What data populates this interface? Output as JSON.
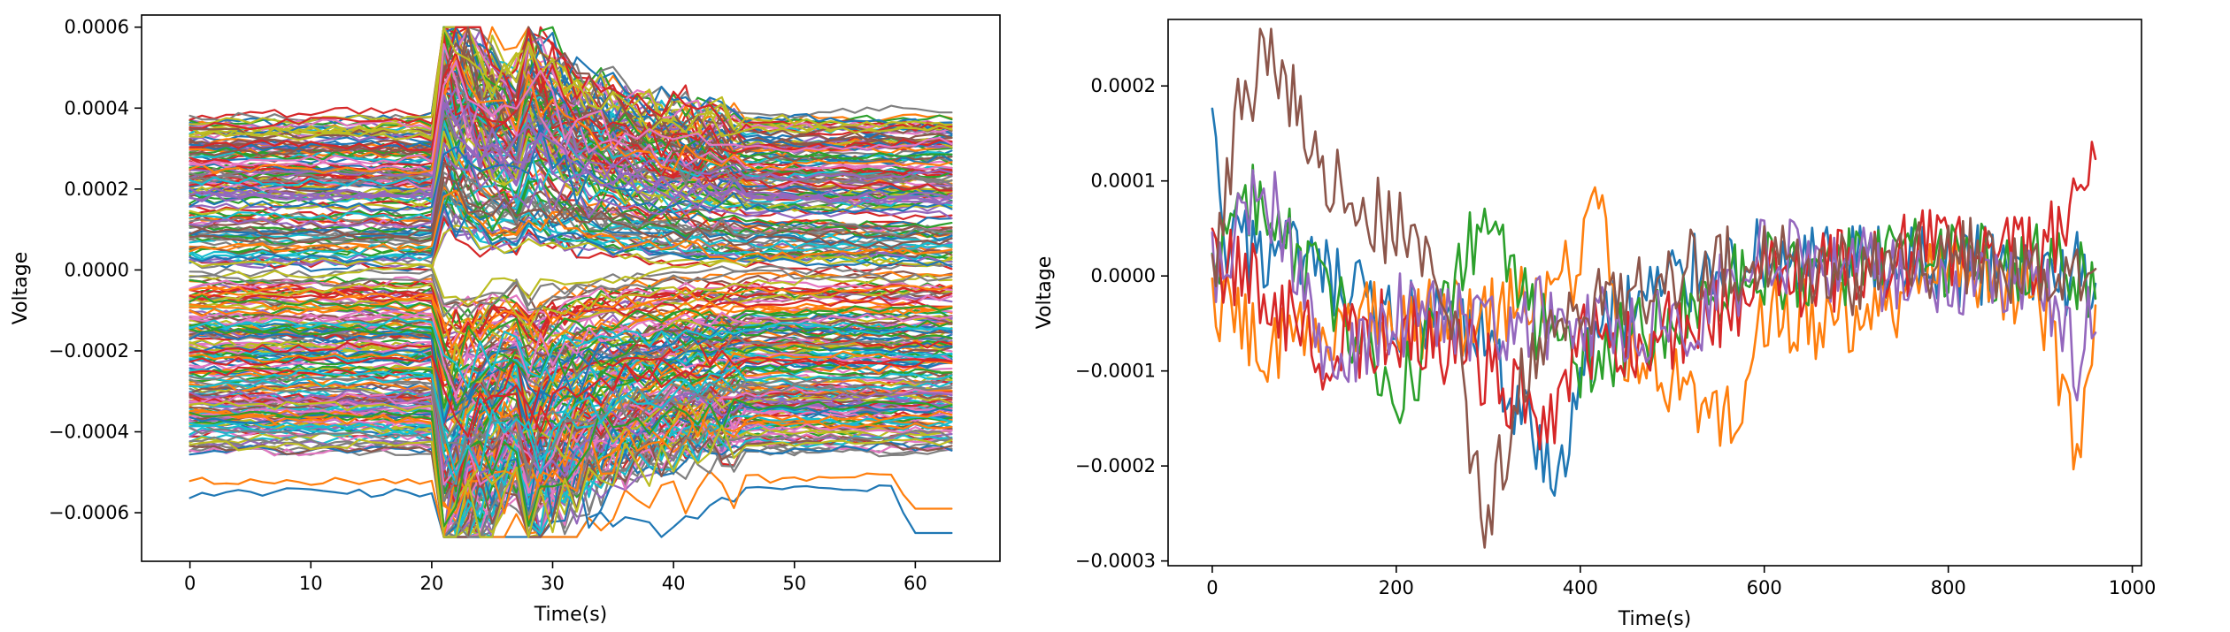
{
  "chart_data": [
    {
      "type": "line",
      "title": "",
      "xlabel": "Time(s)",
      "ylabel": "Voltage",
      "xlim": [
        -4,
        67
      ],
      "ylim": [
        -0.00072,
        0.00063
      ],
      "xticks": [
        {
          "value": 0,
          "label": "0"
        },
        {
          "value": 10,
          "label": "10"
        },
        {
          "value": 20,
          "label": "20"
        },
        {
          "value": 30,
          "label": "30"
        },
        {
          "value": 40,
          "label": "40"
        },
        {
          "value": 50,
          "label": "50"
        },
        {
          "value": 60,
          "label": "60"
        }
      ],
      "yticks": [
        {
          "value": -0.0006,
          "label": "−0.0006"
        },
        {
          "value": -0.0004,
          "label": "−0.0004"
        },
        {
          "value": -0.0002,
          "label": "−0.0002"
        },
        {
          "value": 0,
          "label": "0.0000"
        },
        {
          "value": 0.0002,
          "label": "0.0002"
        },
        {
          "value": 0.0004,
          "label": "0.0004"
        },
        {
          "value": 0.0006,
          "label": "0.0006"
        }
      ],
      "grid": false,
      "legend": "none",
      "series_count": 300,
      "x_range": [
        0,
        63
      ],
      "value_range": [
        -0.00066,
        0.0006
      ],
      "events": [
        {
          "t": 21,
          "amplitude": 0.00022
        },
        {
          "t": 28,
          "amplitude": 0.00016
        }
      ],
      "lowest_series_endpoints": [
        {
          "start": -0.00055,
          "end": -0.00065
        },
        {
          "start": -0.00052,
          "end": -0.00059
        }
      ],
      "colors": [
        "#1f77b4",
        "#ff7f0e",
        "#2ca02c",
        "#d62728",
        "#9467bd",
        "#8c564b",
        "#e377c2",
        "#7f7f7f",
        "#bcbd22",
        "#17becf"
      ]
    },
    {
      "type": "line",
      "title": "",
      "xlabel": "Time(s)",
      "ylabel": "Voltage",
      "xlim": [
        -48,
        1010
      ],
      "ylim": [
        -0.000305,
        0.00027
      ],
      "xticks": [
        {
          "value": 0,
          "label": "0"
        },
        {
          "value": 200,
          "label": "200"
        },
        {
          "value": 400,
          "label": "400"
        },
        {
          "value": 600,
          "label": "600"
        },
        {
          "value": 800,
          "label": "800"
        },
        {
          "value": 1000,
          "label": "1000"
        }
      ],
      "yticks": [
        {
          "value": -0.0003,
          "label": "−0.0003"
        },
        {
          "value": -0.0002,
          "label": "−0.0002"
        },
        {
          "value": -0.0001,
          "label": "−0.0001"
        },
        {
          "value": 0,
          "label": "0.0000"
        },
        {
          "value": 0.0001,
          "label": "0.0001"
        },
        {
          "value": 0.0002,
          "label": "0.0002"
        }
      ],
      "grid": false,
      "legend": "none",
      "x_range": [
        0,
        960
      ],
      "series": [
        {
          "color": "#1f77b4",
          "anchors": [
            [
              0,
              0.000165
            ],
            [
              10,
              3e-05
            ],
            [
              80,
              2e-05
            ],
            [
              180,
              -4e-05
            ],
            [
              300,
              -7e-05
            ],
            [
              370,
              -0.00022
            ],
            [
              420,
              -5e-05
            ],
            [
              550,
              2e-05
            ],
            [
              700,
              1e-05
            ],
            [
              850,
              1e-05
            ],
            [
              960,
              0.0
            ]
          ]
        },
        {
          "color": "#ff7f0e",
          "anchors": [
            [
              0,
              -2e-05
            ],
            [
              60,
              -8e-05
            ],
            [
              200,
              -4e-05
            ],
            [
              300,
              -5e-05
            ],
            [
              400,
              1e-05
            ],
            [
              412,
              0.00012
            ],
            [
              450,
              -8e-05
            ],
            [
              560,
              -0.00016
            ],
            [
              600,
              -4e-05
            ],
            [
              700,
              -5e-05
            ],
            [
              800,
              1e-05
            ],
            [
              900,
              -2e-05
            ],
            [
              940,
              -0.00018
            ],
            [
              960,
              -6e-05
            ]
          ]
        },
        {
          "color": "#2ca02c",
          "anchors": [
            [
              0,
              0.0
            ],
            [
              50,
              9e-05
            ],
            [
              100,
              1e-05
            ],
            [
              200,
              -0.00012
            ],
            [
              250,
              -5e-05
            ],
            [
              300,
              8e-05
            ],
            [
              350,
              -5e-05
            ],
            [
              400,
              -9e-05
            ],
            [
              500,
              -4e-05
            ],
            [
              600,
              1e-05
            ],
            [
              700,
              1e-05
            ],
            [
              800,
              2e-05
            ],
            [
              900,
              1e-05
            ],
            [
              960,
              0.0
            ]
          ]
        },
        {
          "color": "#d62728",
          "anchors": [
            [
              0,
              2e-05
            ],
            [
              50,
              -1e-05
            ],
            [
              120,
              -8e-05
            ],
            [
              200,
              -5e-05
            ],
            [
              300,
              -0.0001
            ],
            [
              360,
              -0.00016
            ],
            [
              400,
              -7e-05
            ],
            [
              500,
              -6e-05
            ],
            [
              600,
              -1e-05
            ],
            [
              700,
              1e-05
            ],
            [
              800,
              3e-05
            ],
            [
              900,
              2e-05
            ],
            [
              960,
              0.00011
            ]
          ]
        },
        {
          "color": "#9467bd",
          "anchors": [
            [
              0,
              1e-05
            ],
            [
              60,
              9e-05
            ],
            [
              120,
              -9e-05
            ],
            [
              200,
              -4e-05
            ],
            [
              300,
              -5e-05
            ],
            [
              400,
              -4e-05
            ],
            [
              500,
              -6e-05
            ],
            [
              600,
              2e-05
            ],
            [
              700,
              1e-05
            ],
            [
              800,
              -1e-05
            ],
            [
              900,
              1e-05
            ],
            [
              940,
              -0.0001
            ],
            [
              960,
              -2e-05
            ]
          ]
        },
        {
          "color": "#8c564b",
          "anchors": [
            [
              0,
              -2e-05
            ],
            [
              30,
              0.00018
            ],
            [
              60,
              0.00024
            ],
            [
              80,
              0.00021
            ],
            [
              140,
              8e-05
            ],
            [
              220,
              4e-05
            ],
            [
              260,
              -4e-05
            ],
            [
              295,
              -0.00027
            ],
            [
              330,
              -0.00013
            ],
            [
              400,
              -2e-05
            ],
            [
              500,
              0.0
            ],
            [
              600,
              2e-05
            ],
            [
              700,
              0.0
            ],
            [
              800,
              2e-05
            ],
            [
              900,
              1e-05
            ],
            [
              960,
              1e-05
            ]
          ]
        }
      ]
    }
  ]
}
